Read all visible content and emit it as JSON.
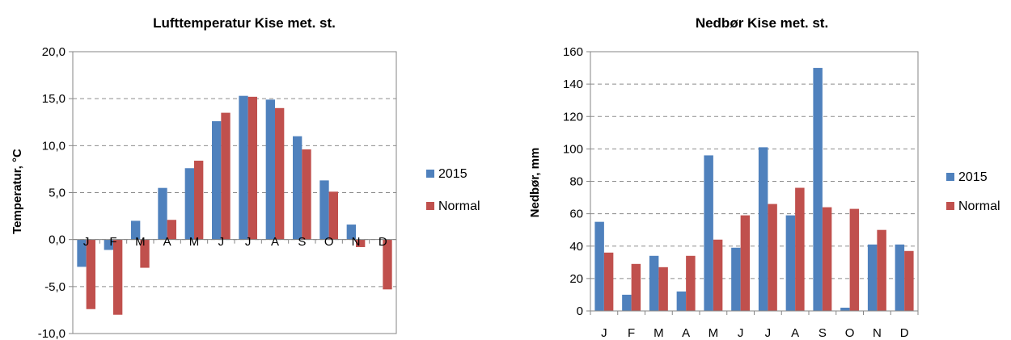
{
  "chart_data": [
    {
      "type": "bar",
      "title": "Lufttemperatur Kise met. st.",
      "xlabel": "",
      "ylabel": "Temperatur, °C",
      "categories": [
        "J",
        "F",
        "M",
        "A",
        "M",
        "J",
        "J",
        "A",
        "S",
        "O",
        "N",
        "D"
      ],
      "series": [
        {
          "name": "2015",
          "color": "#4F81BD",
          "values": [
            -2.9,
            -1.1,
            2.0,
            5.5,
            7.6,
            12.6,
            15.3,
            14.9,
            11.0,
            6.3,
            1.6,
            0.0
          ]
        },
        {
          "name": "Normal",
          "color": "#C0504D",
          "values": [
            -7.4,
            -8.0,
            -3.0,
            2.1,
            8.4,
            13.5,
            15.2,
            14.0,
            9.6,
            5.1,
            -0.8,
            -5.3
          ]
        }
      ],
      "ylim": [
        -10,
        20
      ],
      "yticks": [
        -10,
        -5,
        0,
        5,
        10,
        15,
        20
      ],
      "ytick_labels": [
        "-10,0",
        "-5,0",
        "0,0",
        "5,0",
        "10,0",
        "15,0",
        "20,0"
      ],
      "grid": "horizontal dashed",
      "legend": "right"
    },
    {
      "type": "bar",
      "title": "Nedbør Kise met. st.",
      "xlabel": "",
      "ylabel": "Nedbør, mm",
      "categories": [
        "J",
        "F",
        "M",
        "A",
        "M",
        "J",
        "J",
        "A",
        "S",
        "O",
        "N",
        "D"
      ],
      "series": [
        {
          "name": "2015",
          "color": "#4F81BD",
          "values": [
            55,
            10,
            34,
            12,
            96,
            39,
            101,
            59,
            150,
            2,
            41,
            41
          ]
        },
        {
          "name": "Normal",
          "color": "#C0504D",
          "values": [
            36,
            29,
            27,
            34,
            44,
            59,
            66,
            76,
            64,
            63,
            50,
            37
          ]
        }
      ],
      "ylim": [
        0,
        160
      ],
      "yticks": [
        0,
        20,
        40,
        60,
        80,
        100,
        120,
        140,
        160
      ],
      "ytick_labels": [
        "0",
        "20",
        "40",
        "60",
        "80",
        "100",
        "120",
        "140",
        "160"
      ],
      "grid": "horizontal dashed",
      "legend": "right"
    }
  ]
}
